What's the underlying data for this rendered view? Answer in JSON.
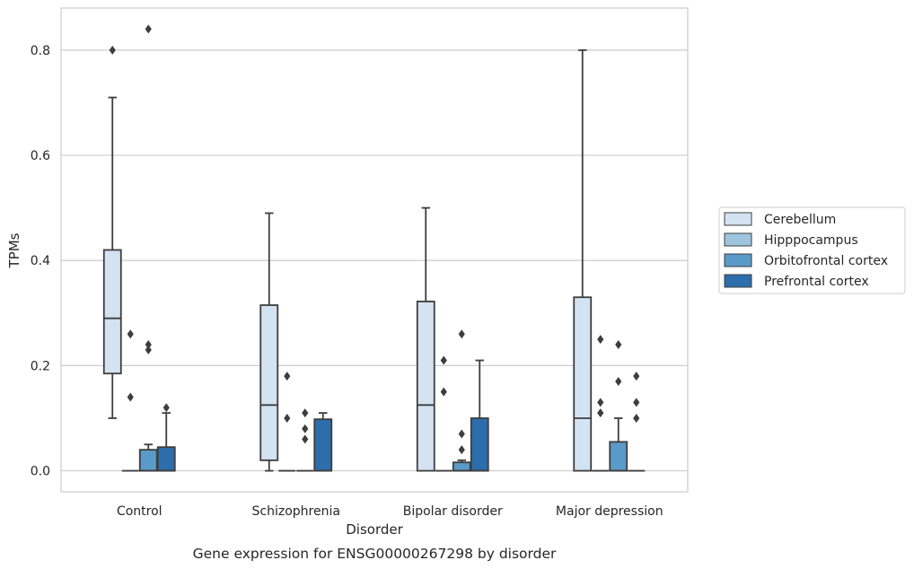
{
  "chart_data": {
    "type": "box",
    "xlabel": "Disorder",
    "ylabel": "TPMs",
    "caption": "Gene expression for ENSG00000267298 by disorder",
    "ylim": [
      -0.04,
      0.88
    ],
    "yticks": [
      0.0,
      0.2,
      0.4,
      0.6,
      0.8
    ],
    "ytick_labels": [
      "0.0",
      "0.2",
      "0.4",
      "0.6",
      "0.8"
    ],
    "grid": "horizontal",
    "legend_position": "right",
    "categories": [
      "Control",
      "Schizophrenia",
      "Bipolar disorder",
      "Major depression"
    ],
    "series": [
      {
        "name": "Cerebellum",
        "color": "#d4e3f2",
        "boxes": [
          {
            "whislo": 0.1,
            "q1": 0.185,
            "med": 0.29,
            "q3": 0.42,
            "whishi": 0.71,
            "fliers": [
              0.8
            ]
          },
          {
            "whislo": 0.0,
            "q1": 0.02,
            "med": 0.125,
            "q3": 0.315,
            "whishi": 0.49,
            "fliers": []
          },
          {
            "whislo": 0.0,
            "q1": 0.0,
            "med": 0.125,
            "q3": 0.322,
            "whishi": 0.5,
            "fliers": []
          },
          {
            "whislo": 0.0,
            "q1": 0.0,
            "med": 0.1,
            "q3": 0.33,
            "whishi": 0.8,
            "fliers": []
          }
        ]
      },
      {
        "name": "Hipppocampus",
        "color": "#9ec4de",
        "boxes": [
          {
            "whislo": 0.0,
            "q1": 0.0,
            "med": 0.0,
            "q3": 0.0,
            "whishi": 0.0,
            "fliers": [
              0.26,
              0.14
            ]
          },
          {
            "whislo": 0.0,
            "q1": 0.0,
            "med": 0.0,
            "q3": 0.0,
            "whishi": 0.0,
            "fliers": [
              0.18,
              0.1
            ]
          },
          {
            "whislo": 0.0,
            "q1": 0.0,
            "med": 0.0,
            "q3": 0.0,
            "whishi": 0.0,
            "fliers": [
              0.21,
              0.15
            ]
          },
          {
            "whislo": 0.0,
            "q1": 0.0,
            "med": 0.0,
            "q3": 0.0,
            "whishi": 0.0,
            "fliers": [
              0.25,
              0.13,
              0.11
            ]
          }
        ]
      },
      {
        "name": "Orbitofrontal cortex",
        "color": "#5a9ac9",
        "boxes": [
          {
            "whislo": 0.0,
            "q1": 0.0,
            "med": 0.0,
            "q3": 0.04,
            "whishi": 0.05,
            "fliers": [
              0.84,
              0.24,
              0.23
            ]
          },
          {
            "whislo": 0.0,
            "q1": 0.0,
            "med": 0.0,
            "q3": 0.0,
            "whishi": 0.0,
            "fliers": [
              0.11,
              0.08,
              0.06
            ]
          },
          {
            "whislo": 0.0,
            "q1": 0.0,
            "med": 0.0,
            "q3": 0.016,
            "whishi": 0.02,
            "fliers": [
              0.26,
              0.07,
              0.04
            ]
          },
          {
            "whislo": 0.0,
            "q1": 0.0,
            "med": 0.0,
            "q3": 0.055,
            "whishi": 0.1,
            "fliers": [
              0.24,
              0.17
            ]
          }
        ]
      },
      {
        "name": "Prefrontal cortex",
        "color": "#2c6dab",
        "boxes": [
          {
            "whislo": 0.0,
            "q1": 0.0,
            "med": 0.0,
            "q3": 0.045,
            "whishi": 0.11,
            "fliers": [
              0.12
            ]
          },
          {
            "whislo": 0.0,
            "q1": 0.0,
            "med": 0.0,
            "q3": 0.098,
            "whishi": 0.11,
            "fliers": []
          },
          {
            "whislo": 0.0,
            "q1": 0.0,
            "med": 0.0,
            "q3": 0.1,
            "whishi": 0.21,
            "fliers": []
          },
          {
            "whislo": 0.0,
            "q1": 0.0,
            "med": 0.0,
            "q3": 0.0,
            "whishi": 0.0,
            "fliers": [
              0.18,
              0.13,
              0.1
            ]
          }
        ]
      }
    ]
  }
}
